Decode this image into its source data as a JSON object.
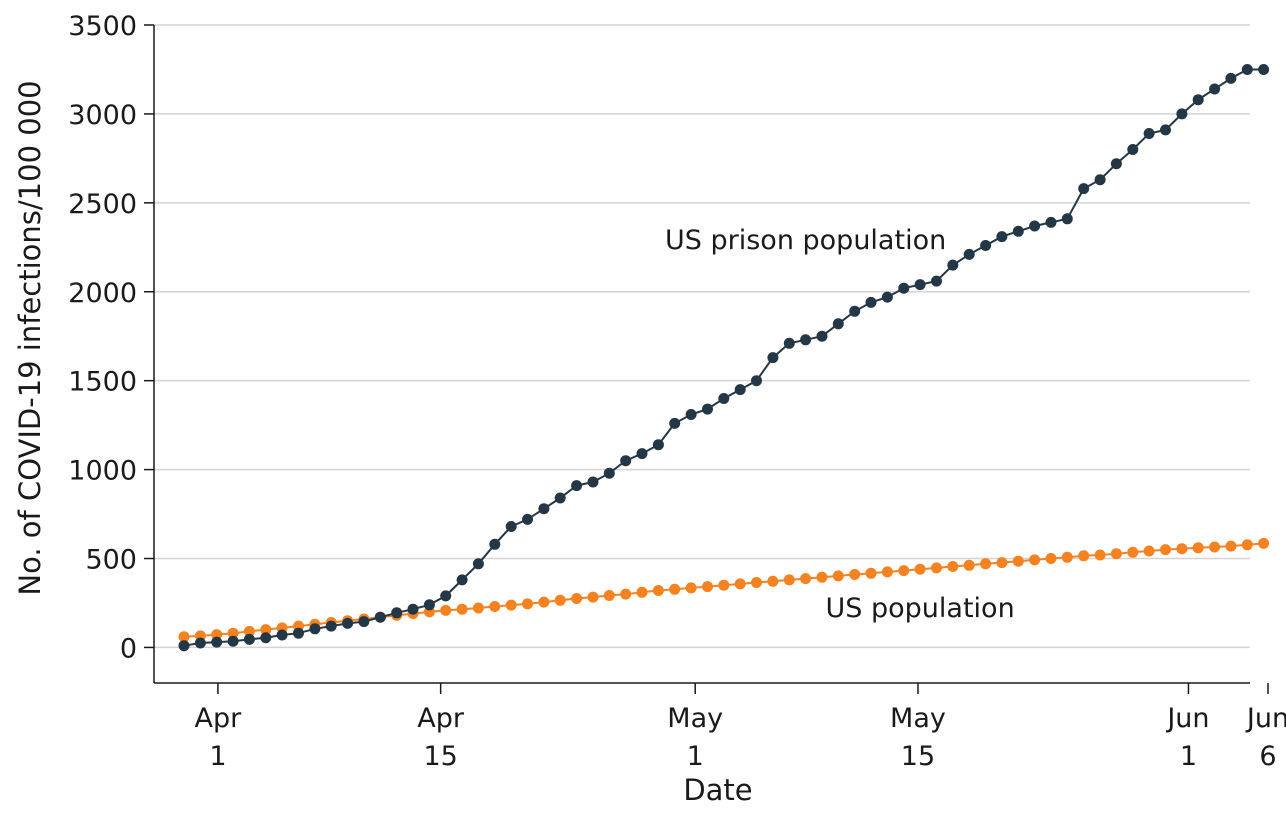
{
  "chart_data": {
    "type": "line",
    "title": "",
    "xlabel": "Date",
    "ylabel": "No. of COVID-19 infections/100 000",
    "ylim": [
      -200,
      3500
    ],
    "y_ticks": [
      0,
      500,
      1000,
      1500,
      2000,
      2500,
      3000,
      3500
    ],
    "y_tick_labels": [
      "0",
      "500",
      "1000",
      "1500",
      "2000",
      "2500",
      "3000",
      "3500"
    ],
    "xlim": [
      "2020-03-31",
      "2020-06-06"
    ],
    "x_ticks": [
      {
        "date": "2020-04-01",
        "line1": "Apr",
        "line2": "1"
      },
      {
        "date": "2020-04-15",
        "line1": "Apr",
        "line2": "15"
      },
      {
        "date": "2020-05-01",
        "line1": "May",
        "line2": "1"
      },
      {
        "date": "2020-05-15",
        "line1": "May",
        "line2": "15"
      },
      {
        "date": "2020-06-01",
        "line1": "Jun",
        "line2": "1"
      },
      {
        "date": "2020-06-06",
        "line1": "Jun",
        "line2": "6"
      }
    ],
    "grid": "horizontal",
    "legend": "none",
    "x": [
      "2020-03-31",
      "2020-04-01",
      "2020-04-02",
      "2020-04-03",
      "2020-04-04",
      "2020-04-05",
      "2020-04-06",
      "2020-04-07",
      "2020-04-08",
      "2020-04-09",
      "2020-04-10",
      "2020-04-11",
      "2020-04-12",
      "2020-04-13",
      "2020-04-14",
      "2020-04-15",
      "2020-04-16",
      "2020-04-17",
      "2020-04-18",
      "2020-04-19",
      "2020-04-20",
      "2020-04-21",
      "2020-04-22",
      "2020-04-23",
      "2020-04-24",
      "2020-04-25",
      "2020-04-26",
      "2020-04-27",
      "2020-04-28",
      "2020-04-29",
      "2020-04-30",
      "2020-05-01",
      "2020-05-02",
      "2020-05-03",
      "2020-05-04",
      "2020-05-05",
      "2020-05-06",
      "2020-05-07",
      "2020-05-08",
      "2020-05-09",
      "2020-05-10",
      "2020-05-11",
      "2020-05-12",
      "2020-05-13",
      "2020-05-14",
      "2020-05-15",
      "2020-05-16",
      "2020-05-17",
      "2020-05-18",
      "2020-05-19",
      "2020-05-20",
      "2020-05-21",
      "2020-05-22",
      "2020-05-23",
      "2020-05-24",
      "2020-05-25",
      "2020-05-26",
      "2020-05-27",
      "2020-05-28",
      "2020-05-29",
      "2020-05-30",
      "2020-05-31",
      "2020-06-01",
      "2020-06-02",
      "2020-06-03",
      "2020-06-04",
      "2020-06-05"
    ],
    "series": [
      {
        "name": "US prison population",
        "color": "#243746",
        "label_x": "2020-05-08",
        "label_y": 2240,
        "values": [
          10,
          25,
          30,
          35,
          45,
          55,
          70,
          80,
          105,
          120,
          135,
          145,
          170,
          195,
          215,
          240,
          290,
          380,
          470,
          580,
          680,
          720,
          780,
          840,
          910,
          930,
          980,
          1050,
          1090,
          1140,
          1260,
          1310,
          1340,
          1400,
          1450,
          1500,
          1630,
          1710,
          1730,
          1750,
          1820,
          1890,
          1940,
          1970,
          2020,
          2040,
          2060,
          2150,
          2210,
          2260,
          2310,
          2340,
          2370,
          2390,
          2410,
          2580,
          2630,
          2720,
          2800,
          2890,
          2910,
          3000,
          3080,
          3140,
          3200,
          3250,
          3250
        ]
      },
      {
        "name": "US population",
        "color": "#f58220",
        "label_x": "2020-05-15",
        "label_y": 170,
        "values": [
          60,
          65,
          72,
          80,
          90,
          100,
          110,
          120,
          130,
          140,
          150,
          160,
          170,
          180,
          190,
          200,
          208,
          215,
          222,
          230,
          238,
          245,
          255,
          265,
          275,
          283,
          292,
          300,
          310,
          320,
          327,
          335,
          342,
          350,
          357,
          365,
          372,
          380,
          387,
          395,
          402,
          410,
          417,
          425,
          432,
          440,
          447,
          455,
          462,
          470,
          477,
          485,
          492,
          500,
          507,
          515,
          520,
          527,
          535,
          542,
          550,
          555,
          560,
          565,
          570,
          577,
          585
        ]
      }
    ]
  }
}
